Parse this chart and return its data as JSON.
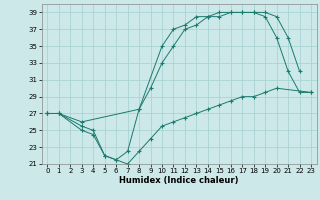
{
  "xlabel": "Humidex (Indice chaleur)",
  "background_color": "#cce8e8",
  "grid_color": "#aad4d4",
  "line_color": "#1a7a6e",
  "xlim": [
    -0.5,
    23.5
  ],
  "ylim": [
    21,
    40
  ],
  "yticks": [
    21,
    23,
    25,
    27,
    29,
    31,
    33,
    35,
    37,
    39
  ],
  "xticks": [
    0,
    1,
    2,
    3,
    4,
    5,
    6,
    7,
    8,
    9,
    10,
    11,
    12,
    13,
    14,
    15,
    16,
    17,
    18,
    19,
    20,
    21,
    22,
    23
  ],
  "s1_x": [
    0,
    1,
    3,
    4,
    5,
    6,
    7,
    8,
    9,
    10,
    11,
    12,
    13,
    14,
    15,
    16,
    17,
    18,
    19,
    20,
    23
  ],
  "s1_y": [
    27,
    27,
    25.5,
    25,
    22,
    21.5,
    21,
    22.5,
    24,
    25.5,
    26,
    26.5,
    27,
    27.5,
    28,
    28.5,
    29,
    29,
    29.5,
    30,
    29.5
  ],
  "s2_x": [
    0,
    1,
    3,
    4,
    5,
    6,
    7,
    8,
    10,
    11,
    12,
    13,
    14,
    15,
    16,
    17,
    18,
    19,
    20,
    21,
    22
  ],
  "s2_y": [
    27,
    27,
    25,
    24.5,
    22,
    21.5,
    22.5,
    27.5,
    35,
    37,
    37.5,
    38.5,
    38.5,
    39,
    39,
    39,
    39,
    39,
    38.5,
    36,
    32
  ],
  "s3_x": [
    0,
    1,
    3,
    8,
    9,
    10,
    11,
    12,
    13,
    14,
    15,
    16,
    17,
    18,
    19,
    20,
    21,
    22,
    23
  ],
  "s3_y": [
    27,
    27,
    26,
    27.5,
    30,
    33,
    35,
    37,
    37.5,
    38.5,
    38.5,
    39,
    39,
    39,
    38.5,
    36,
    32,
    29.5,
    29.5
  ]
}
